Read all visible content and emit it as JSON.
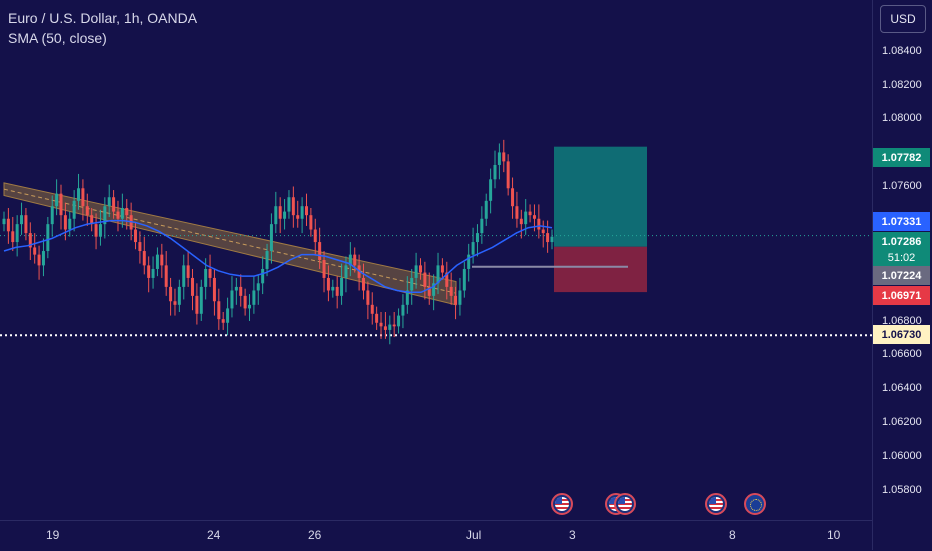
{
  "header": {
    "symbol_line": "Euro / U.S. Dollar, 1h, OANDA",
    "indicator_line": "SMA (50, close)",
    "currency_button": "USD"
  },
  "price_axis": {
    "ticks": [
      "1.08400",
      "1.08200",
      "1.08000",
      "1.07600",
      "1.06800",
      "1.06600",
      "1.06400",
      "1.06200",
      "1.06000",
      "1.05800"
    ],
    "badges": {
      "target": "1.07782",
      "sma": "1.07331",
      "last_price": "1.07286",
      "countdown": "51:02",
      "entry": "1.07224",
      "stop": "1.06971",
      "support": "1.06730"
    }
  },
  "time_axis": {
    "labels": [
      "19",
      "24",
      "26",
      "Jul",
      "3",
      "8",
      "10"
    ]
  },
  "colors": {
    "background": "#14114a",
    "up_candle": "#26a69a",
    "down_candle": "#ef5350",
    "sma_line": "#2962ff",
    "channel_fill": "#8d6e3c",
    "target_zone": "#0e7c7b",
    "stop_zone": "#8b2541",
    "support_line": "#ffffff"
  },
  "events": [
    {
      "icon": "us-flag-icon"
    },
    {
      "icon": "us-flag-icon"
    },
    {
      "icon": "us-flag-icon"
    },
    {
      "icon": "us-flag-icon"
    },
    {
      "icon": "eu-flag-icon"
    }
  ],
  "chart_data": {
    "type": "line",
    "instrument": "Euro / U.S. Dollar",
    "timeframe": "1h",
    "indicator": "SMA (50, close)",
    "x_labels": [
      "19",
      "24",
      "26",
      "Jul",
      "3",
      "8",
      "10"
    ],
    "ylim": [
      1.057,
      1.086
    ],
    "last_price": 1.07286,
    "close_series": [
      1.0738,
      1.0731,
      1.0725,
      1.0735,
      1.074,
      1.073,
      1.0722,
      1.0718,
      1.0712,
      1.072,
      1.0735,
      1.0745,
      1.0752,
      1.074,
      1.0732,
      1.0738,
      1.0748,
      1.0755,
      1.0745,
      1.074,
      1.0735,
      1.0728,
      1.0735,
      1.0745,
      1.075,
      1.0742,
      1.0738,
      1.0744,
      1.074,
      1.0732,
      1.0725,
      1.072,
      1.0712,
      1.0705,
      1.071,
      1.0718,
      1.0712,
      1.07,
      1.0692,
      1.069,
      1.07,
      1.0712,
      1.0705,
      1.0695,
      1.0685,
      1.07,
      1.071,
      1.0705,
      1.0692,
      1.0682,
      1.068,
      1.0688,
      1.0698,
      1.07,
      1.0695,
      1.0688,
      1.069,
      1.0698,
      1.0702,
      1.071,
      1.072,
      1.0735,
      1.0745,
      1.0738,
      1.0742,
      1.075,
      1.074,
      1.0738,
      1.0745,
      1.074,
      1.0732,
      1.0725,
      1.0715,
      1.0705,
      1.0698,
      1.07,
      1.0695,
      1.0705,
      1.0712,
      1.0718,
      1.0712,
      1.0705,
      1.0698,
      1.069,
      1.0685,
      1.068,
      1.0678,
      1.0676,
      1.0679,
      1.0678,
      1.0684,
      1.069,
      1.0698,
      1.0705,
      1.0712,
      1.0708,
      1.07,
      1.0695,
      1.0702,
      1.0712,
      1.0708,
      1.07,
      1.0695,
      1.069,
      1.0698,
      1.071,
      1.0718,
      1.0725,
      1.073,
      1.0738,
      1.0748,
      1.076,
      1.0768,
      1.0775,
      1.077,
      1.0755,
      1.0745,
      1.0738,
      1.0735,
      1.0742,
      1.074,
      1.0738,
      1.0732,
      1.073,
      1.0725,
      1.0728
    ],
    "sma_series": [
      1.072,
      1.0722,
      1.0723,
      1.0725,
      1.0727,
      1.073,
      1.0733,
      1.0735,
      1.0736,
      1.0737,
      1.0737,
      1.0736,
      1.0734,
      1.0731,
      1.0727,
      1.0722,
      1.0717,
      1.0712,
      1.0709,
      1.0707,
      1.0706,
      1.0706,
      1.0708,
      1.0711,
      1.0715,
      1.0718,
      1.0718,
      1.0717,
      1.0715,
      1.0713,
      1.0708,
      1.0704,
      1.07,
      1.0698,
      1.0697,
      1.0697,
      1.07,
      1.0706,
      1.0712,
      1.0716,
      1.0719,
      1.0722,
      1.0726,
      1.073,
      1.0733,
      1.0734,
      1.0733
    ],
    "channel": {
      "upper": [
        [
          0,
          1.0758
        ],
        [
          62,
          1.0703
        ]
      ],
      "lower": [
        [
          0,
          1.0751
        ],
        [
          62,
          1.069
        ]
      ]
    },
    "position_tool": {
      "entry": 1.07224,
      "target": 1.07782,
      "stop": 1.06971
    },
    "support_level": 1.0673
  }
}
